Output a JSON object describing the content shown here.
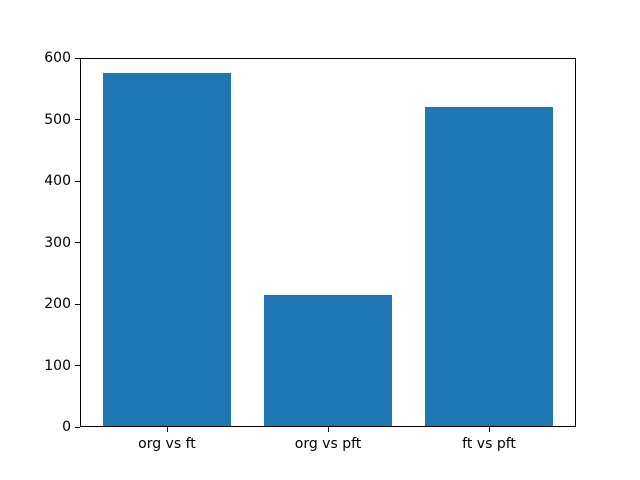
{
  "chart_data": {
    "type": "bar",
    "categories": [
      "org vs ft",
      "org vs pft",
      "ft vs pft"
    ],
    "values": [
      575,
      215,
      520
    ],
    "title": "",
    "xlabel": "",
    "ylabel": "",
    "ylim": [
      0,
      600
    ],
    "yticks": [
      0,
      100,
      200,
      300,
      400,
      500,
      600
    ],
    "bar_color": "#1f77b4",
    "axis_color": "#000000",
    "background_color": "#ffffff",
    "grid": false,
    "legend": null,
    "bar_width_fraction": 0.8,
    "x_margin_fraction": 0.05
  }
}
